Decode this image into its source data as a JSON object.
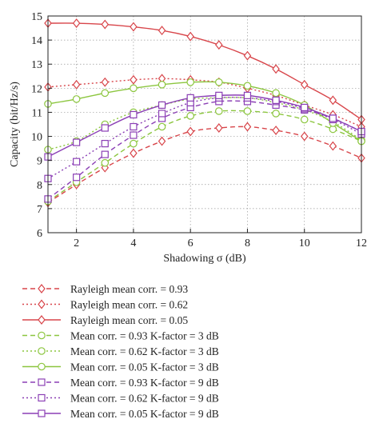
{
  "chart_data": {
    "type": "line",
    "xlabel": "Shadowing σ (dB)",
    "ylabel": "Capacity (bit/Hz/s)",
    "xlim": [
      1,
      12
    ],
    "ylim": [
      6,
      15
    ],
    "xticks": [
      2,
      4,
      6,
      8,
      10,
      12
    ],
    "yticks": [
      6,
      7,
      8,
      9,
      10,
      11,
      12,
      13,
      14,
      15
    ],
    "grid": true,
    "legend_position": "below",
    "x": [
      1,
      2,
      3,
      4,
      5,
      6,
      7,
      8,
      9,
      10,
      11,
      12
    ],
    "series": [
      {
        "name": "Rayleigh mean corr. = 0.93",
        "color": "#d8454a",
        "dash": "dashed",
        "marker": "diamond",
        "values": [
          7.25,
          8.0,
          8.7,
          9.3,
          9.8,
          10.2,
          10.35,
          10.4,
          10.25,
          10.0,
          9.6,
          9.1
        ]
      },
      {
        "name": "Rayleigh mean corr. = 0.62",
        "color": "#d8454a",
        "dash": "dotted",
        "marker": "diamond",
        "values": [
          12.05,
          12.15,
          12.25,
          12.35,
          12.4,
          12.35,
          12.25,
          12.0,
          11.7,
          11.3,
          10.9,
          10.4
        ]
      },
      {
        "name": "Rayleigh mean corr. = 0.05",
        "color": "#d8454a",
        "dash": "solid",
        "marker": "diamond",
        "values": [
          14.7,
          14.7,
          14.65,
          14.55,
          14.4,
          14.15,
          13.8,
          13.35,
          12.8,
          12.15,
          11.5,
          10.7
        ]
      },
      {
        "name": "Mean corr. = 0.93 K-factor = 3 dB",
        "color": "#8cc63f",
        "dash": "dashed",
        "marker": "circle",
        "values": [
          7.3,
          8.1,
          8.9,
          9.7,
          10.4,
          10.85,
          11.05,
          11.05,
          10.95,
          10.7,
          10.3,
          9.8
        ]
      },
      {
        "name": "Mean corr. = 0.62 K-factor = 3 dB",
        "color": "#8cc63f",
        "dash": "dotted",
        "marker": "circle",
        "values": [
          9.45,
          9.8,
          10.5,
          11.0,
          11.3,
          11.55,
          11.6,
          11.6,
          11.4,
          11.1,
          10.6,
          9.85
        ]
      },
      {
        "name": "Mean corr. = 0.05 K-factor = 3 dB",
        "color": "#8cc63f",
        "dash": "solid",
        "marker": "circle",
        "values": [
          11.35,
          11.55,
          11.8,
          12.0,
          12.15,
          12.25,
          12.25,
          12.1,
          11.8,
          11.3,
          10.55,
          9.8
        ]
      },
      {
        "name": "Mean corr. = 0.93 K-factor = 9 dB",
        "color": "#8b3fb5",
        "dash": "dashed",
        "marker": "square",
        "values": [
          7.4,
          8.3,
          9.25,
          10.05,
          10.75,
          11.2,
          11.45,
          11.45,
          11.3,
          11.1,
          10.75,
          10.2
        ]
      },
      {
        "name": "Mean corr. = 0.62 K-factor = 9 dB",
        "color": "#8b3fb5",
        "dash": "dotted",
        "marker": "square",
        "values": [
          8.25,
          8.95,
          9.7,
          10.4,
          10.95,
          11.4,
          11.6,
          11.6,
          11.45,
          11.15,
          10.7,
          10.1
        ]
      },
      {
        "name": "Mean corr. = 0.05 K-factor = 9 dB",
        "color": "#8b3fb5",
        "dash": "solid",
        "marker": "square",
        "values": [
          9.15,
          9.75,
          10.35,
          10.9,
          11.3,
          11.6,
          11.7,
          11.7,
          11.5,
          11.2,
          10.75,
          10.2
        ]
      }
    ]
  }
}
